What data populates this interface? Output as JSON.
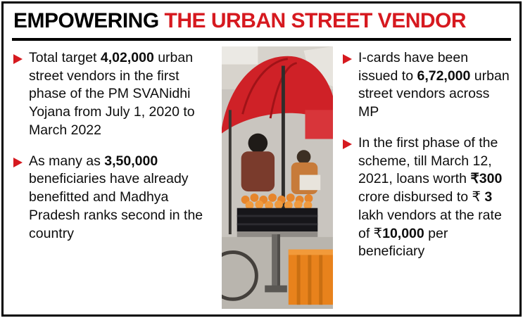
{
  "colors": {
    "accent_red": "#d6191f",
    "text_black": "#0d0d0d"
  },
  "title": {
    "part_black": "EMPOWERING",
    "part_red": " THE URBAN STREET VENDOR"
  },
  "columns": {
    "left": [
      {
        "segments": [
          {
            "t": "Total target ",
            "b": false
          },
          {
            "t": "4,02,000",
            "b": true
          },
          {
            "t": " urban street vendors in the first phase of the PM SVANidhi Yojana from July 1, 2020 to March 2022",
            "b": false
          }
        ]
      },
      {
        "segments": [
          {
            "t": "As many as ",
            "b": false
          },
          {
            "t": "3,50,000",
            "b": true
          },
          {
            "t": " beneficiaries have already benefitted and Madhya Pradesh ranks second in the country",
            "b": false
          }
        ]
      }
    ],
    "right": [
      {
        "segments": [
          {
            "t": "I-cards have been issued to ",
            "b": false
          },
          {
            "t": "6,72,000",
            "b": true
          },
          {
            "t": " urban street vendors across MP",
            "b": false
          }
        ]
      },
      {
        "segments": [
          {
            "t": "In the first phase of the scheme, till March 12, 2021, loans worth ",
            "b": false
          },
          {
            "t": "₹300",
            "b": true
          },
          {
            "t": " crore disbursed to ₹ ",
            "b": false
          },
          {
            "t": "3",
            "b": true
          },
          {
            "t": " lakh vendors at the rate of ₹",
            "b": false
          },
          {
            "t": "10,000",
            "b": true
          },
          {
            "t": " per beneficiary",
            "b": false
          }
        ]
      }
    ]
  }
}
